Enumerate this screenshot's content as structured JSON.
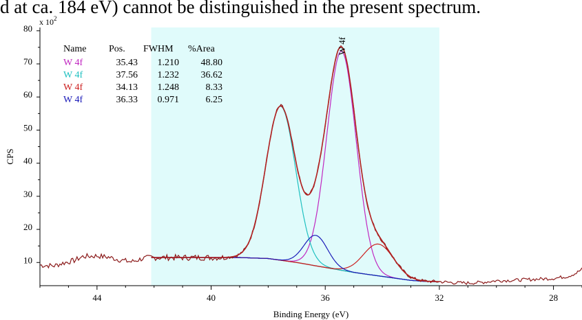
{
  "caption": "d at ca. 184 eV) cannot be distinguished in the present spectrum.",
  "colors": {
    "background_region": "#e0fbfb",
    "envelope": "#b22222",
    "raw_data": "#8b1a1a",
    "background_line": "#555555",
    "comp_w4f_a": "#c026c0",
    "comp_w4f_b": "#1ec0c0",
    "comp_w4f_c": "#cc1f1f",
    "comp_w4f_d": "#1a1ab8"
  },
  "chart_data": {
    "type": "line",
    "xlabel": "Binding Energy (eV)",
    "ylabel": "CPS",
    "y_multiplier": "x 10",
    "y_multiplier_exp": "2",
    "xlim": [
      46,
      27
    ],
    "ylim": [
      3,
      81
    ],
    "x_reversed": true,
    "x_ticks": [
      44,
      40,
      36,
      32,
      28
    ],
    "x_tick_labels": [
      "44",
      "40",
      "36",
      "32",
      "28"
    ],
    "y_ticks": [
      10,
      20,
      30,
      40,
      50,
      60,
      70,
      80
    ],
    "y_tick_labels": [
      "10",
      "20",
      "30",
      "40",
      "50",
      "60",
      "70",
      "80"
    ],
    "grid": false,
    "shaded_region": [
      42.1,
      32.0
    ],
    "peak_label": "W 4f",
    "peak_label_x": 35.4,
    "table": {
      "headers": [
        "Name",
        "Pos.",
        "FWHM",
        "%Area"
      ],
      "rows": [
        {
          "name": "W 4f",
          "pos": "35.43",
          "fwhm": "1.210",
          "area": "48.80",
          "color": "#c026c0"
        },
        {
          "name": "W 4f",
          "pos": "37.56",
          "fwhm": "1.232",
          "area": "36.62",
          "color": "#1ec0c0"
        },
        {
          "name": "W 4f",
          "pos": "34.13",
          "fwhm": "1.248",
          "area": "8.33",
          "color": "#cc1f1f"
        },
        {
          "name": "W 4f",
          "pos": "36.33",
          "fwhm": "0.971",
          "area": "6.25",
          "color": "#1a1ab8"
        }
      ]
    },
    "components": [
      {
        "pos": 35.43,
        "fwhm": 1.21,
        "height": 66.2
      },
      {
        "pos": 37.56,
        "fwhm": 1.232,
        "height": 46.5
      },
      {
        "pos": 34.13,
        "fwhm": 1.248,
        "height": 9.6
      },
      {
        "pos": 36.33,
        "fwhm": 0.971,
        "height": 9.2
      }
    ],
    "background": {
      "x": [
        42.1,
        39.0,
        38.0,
        37.0,
        36.0,
        35.0,
        34.0,
        33.0,
        32.5,
        32.0
      ],
      "y": [
        11.5,
        11.5,
        11.2,
        10.0,
        8.5,
        7.0,
        5.8,
        4.6,
        4.3,
        4.2
      ]
    },
    "raw_outside": {
      "x": [
        46.0,
        45.5,
        45.2,
        44.8,
        44.5,
        44.0,
        43.6,
        43.2,
        42.8,
        42.4,
        42.1,
        32.0,
        31.5,
        31.0,
        30.5,
        30.0,
        29.5,
        29.0,
        28.5,
        28.0,
        27.5,
        27.2,
        27.0
      ],
      "y": [
        9.2,
        9.0,
        9.8,
        10.6,
        11.8,
        12.0,
        11.6,
        10.8,
        10.2,
        11.2,
        11.6,
        4.2,
        3.9,
        3.8,
        4.0,
        4.5,
        4.6,
        4.8,
        5.0,
        5.2,
        5.8,
        6.8,
        8.0
      ]
    }
  }
}
